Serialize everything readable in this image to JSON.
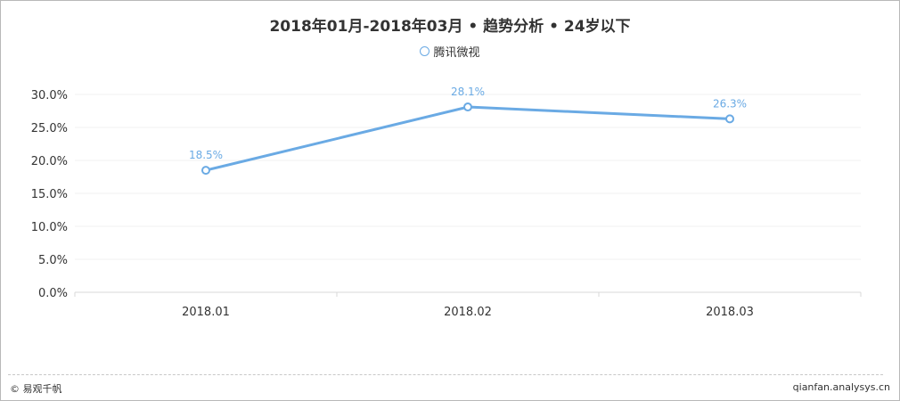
{
  "title": "2018年01月-2018年03月 • 趋势分析 • 24岁以下",
  "legend": {
    "label": "腾讯微视"
  },
  "colors": {
    "series": "#6aaae4",
    "axis_text": "#333333",
    "grid": "#f0f0f0"
  },
  "chart_data": {
    "type": "line",
    "categories": [
      "2018.01",
      "2018.02",
      "2018.03"
    ],
    "series": [
      {
        "name": "腾讯微视",
        "values": [
          18.5,
          28.1,
          26.3
        ],
        "labels": [
          "18.5%",
          "28.1%",
          "26.3%"
        ]
      }
    ],
    "ylim": [
      0,
      30
    ],
    "yticks": [
      "0.0%",
      "5.0%",
      "10.0%",
      "15.0%",
      "20.0%",
      "25.0%",
      "30.0%"
    ],
    "grid": true,
    "legend_position": "top-center"
  },
  "footer": {
    "left": "© 易观千帆",
    "right": "qianfan.analysys.cn"
  }
}
